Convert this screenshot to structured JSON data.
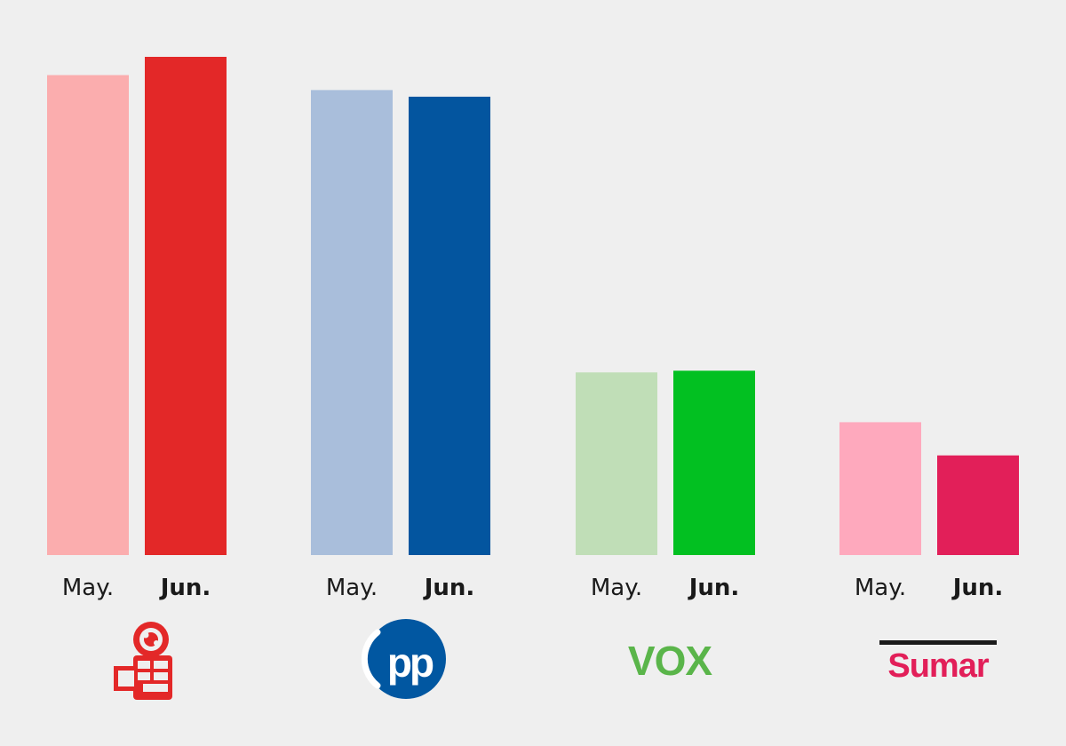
{
  "chart_data": {
    "type": "bar",
    "title": "",
    "xlabel": "",
    "ylabel": "",
    "grid": false,
    "legend": "none",
    "sub_categories": [
      "May.",
      "Jun."
    ],
    "ylim": [
      0,
      30
    ],
    "groups": [
      {
        "party": "PSOE",
        "logo": "psoe-rose-fist-logo",
        "colors": [
          "#fbadae",
          "#e32828"
        ],
        "values": [
          28.9,
          30.0
        ]
      },
      {
        "party": "PP",
        "logo": "pp-circle-logo",
        "colors": [
          "#a9bedb",
          "#03559f"
        ],
        "values": [
          28.0,
          27.6
        ]
      },
      {
        "party": "VOX",
        "logo": "vox-wordmark-logo",
        "colors": [
          "#c0deb7",
          "#02c021"
        ],
        "values": [
          11.0,
          11.1
        ]
      },
      {
        "party": "Sumar",
        "logo": "sumar-wordmark-logo",
        "colors": [
          "#fea9bd",
          "#e21f59"
        ],
        "values": [
          8.0,
          6.0
        ]
      }
    ]
  }
}
